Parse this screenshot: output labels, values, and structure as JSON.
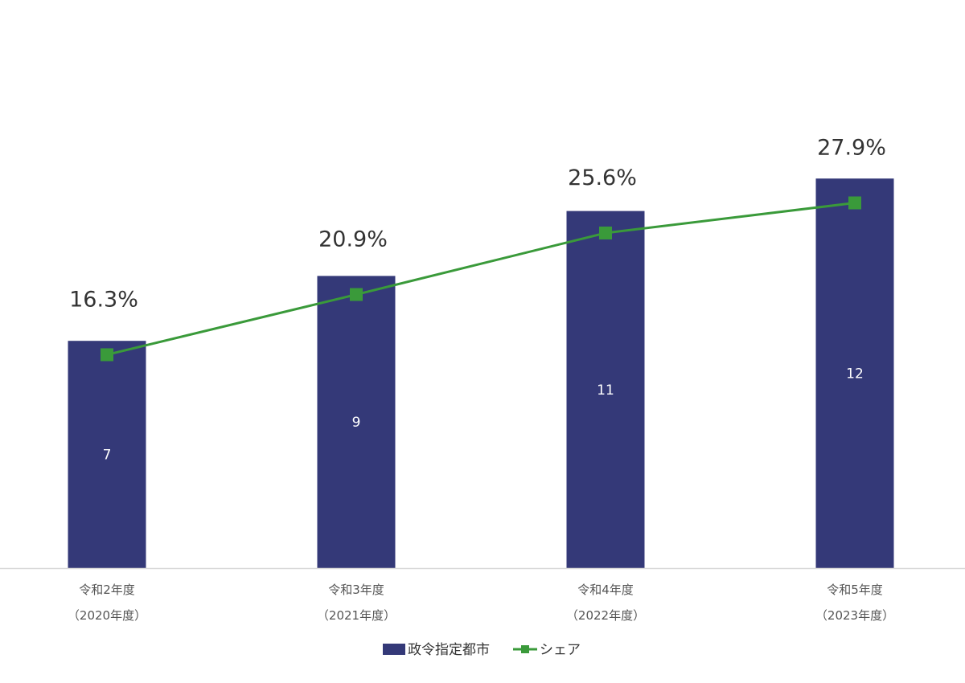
{
  "chart_data": {
    "type": "bar",
    "categories": [
      {
        "line1": "令和2年度",
        "line2": "（2020年度）"
      },
      {
        "line1": "令和3年度",
        "line2": "（2021年度）"
      },
      {
        "line1": "令和4年度",
        "line2": "（2022年度）"
      },
      {
        "line1": "令和5年度",
        "line2": "（2023年度）"
      }
    ],
    "series": [
      {
        "name": "政令指定都市",
        "kind": "bar",
        "color": "#343978",
        "values": [
          7,
          9,
          11,
          12
        ],
        "labels": [
          "7",
          "9",
          "11",
          "12"
        ]
      },
      {
        "name": "シェア",
        "kind": "line",
        "color": "#3a9a3a",
        "values": [
          16.3,
          20.9,
          25.6,
          27.9
        ],
        "labels": [
          "16.3%",
          "20.9%",
          "25.6%",
          "27.9%"
        ]
      }
    ],
    "bar_ylim": [
      0,
      17.5
    ],
    "line_ylim": [
      0,
      43.4
    ],
    "grid": false,
    "legend_position": "bottom"
  }
}
